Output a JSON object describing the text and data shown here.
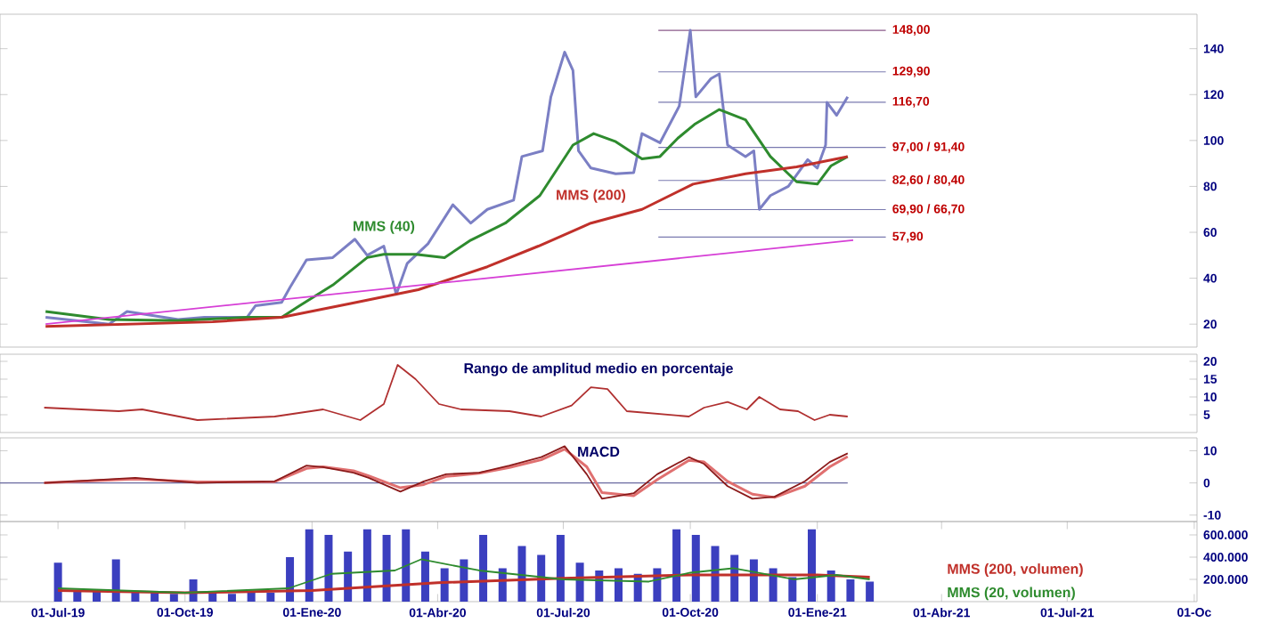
{
  "chart_data": [
    {
      "type": "line",
      "xlim": [
        "2019-05-20",
        "2021-10-03"
      ],
      "ylim": [
        10,
        155
      ],
      "yticks": [
        20,
        40,
        60,
        80,
        100,
        120,
        140
      ],
      "tick_labels": "y",
      "series": [
        {
          "color": "#7b7fc4",
          "x": [
            "2019-06-22",
            "2019-08-07",
            "2019-08-20",
            "2019-09-26",
            "2019-10-15",
            "2019-11-15",
            "2019-11-21",
            "2019-12-10",
            "2019-12-16",
            "2019-12-28",
            "2020-01-16",
            "2020-02-01",
            "2020-02-10",
            "2020-02-22",
            "2020-03-02",
            "2020-03-10",
            "2020-03-25",
            "2020-04-12",
            "2020-04-25",
            "2020-05-07",
            "2020-05-26",
            "2020-06-01",
            "2020-06-16",
            "2020-06-22",
            "2020-07-02",
            "2020-07-08",
            "2020-07-12",
            "2020-07-21",
            "2020-08-08",
            "2020-08-21",
            "2020-08-27",
            "2020-09-09",
            "2020-09-23",
            "2020-10-01",
            "2020-10-05",
            "2020-10-16",
            "2020-10-22",
            "2020-10-28",
            "2020-11-10",
            "2020-11-16",
            "2020-11-20",
            "2020-11-28",
            "2020-12-11",
            "2020-12-25",
            "2021-01-01",
            "2021-01-07",
            "2021-01-08",
            "2021-01-15",
            "2021-01-23"
          ],
          "values": [
            23,
            20,
            25.5,
            22,
            23,
            23,
            28,
            29.5,
            36,
            48,
            49,
            57,
            50,
            54,
            33,
            46.5,
            55,
            72,
            64,
            70,
            74,
            93,
            95.5,
            119,
            138.5,
            130.5,
            95.5,
            88,
            85.5,
            86,
            103,
            99,
            115,
            148,
            119,
            127,
            129,
            98,
            93,
            95.5,
            70,
            76,
            80,
            91.7,
            88,
            98,
            116.6,
            111,
            119
          ]
        },
        {
          "name": "MMS (40)",
          "color": "#2e8b2e",
          "x": [
            "2019-06-22",
            "2019-08-07",
            "2019-09-26",
            "2019-11-15",
            "2019-12-10",
            "2019-12-23",
            "2020-01-16",
            "2020-02-10",
            "2020-02-22",
            "2020-03-16",
            "2020-04-06",
            "2020-04-25",
            "2020-05-20",
            "2020-06-14",
            "2020-07-08",
            "2020-07-23",
            "2020-08-08",
            "2020-08-27",
            "2020-09-09",
            "2020-09-22",
            "2020-10-04",
            "2020-10-22",
            "2020-11-10",
            "2020-11-28",
            "2020-12-17",
            "2021-01-01",
            "2021-01-11",
            "2021-01-23"
          ],
          "values": [
            25.5,
            22,
            21.5,
            23,
            23,
            28,
            37,
            49,
            50.4,
            50.4,
            49,
            56.6,
            64,
            76,
            98,
            103,
            99.5,
            92,
            93,
            101,
            107,
            113.5,
            109,
            93,
            82,
            81,
            89,
            93
          ]
        },
        {
          "name": "MMS (200)",
          "color": "#c0302a",
          "x": [
            "2019-06-22",
            "2019-10-21",
            "2019-12-10",
            "2020-01-29",
            "2020-03-18",
            "2020-05-07",
            "2020-06-13",
            "2020-07-21",
            "2020-08-27",
            "2020-10-03",
            "2020-11-10",
            "2020-12-17",
            "2021-01-23"
          ],
          "values": [
            19,
            21,
            23,
            29,
            35,
            45,
            54,
            64,
            70,
            81,
            85.5,
            88.5,
            93
          ]
        },
        {
          "color": "#d63fd6",
          "x": [
            "2019-06-22",
            "2021-01-27"
          ],
          "values": [
            20,
            56.6
          ]
        }
      ],
      "ref_lines": [
        {
          "axis": "y",
          "value": 148,
          "label": "148,00",
          "color": "#8a5a8a"
        },
        {
          "axis": "y",
          "value": 129.9,
          "label": "129,90",
          "color": "#7a7ab0"
        },
        {
          "axis": "y",
          "value": 116.7,
          "label": "116,70",
          "color": "#7a7ab0"
        },
        {
          "axis": "y",
          "value": 97,
          "label": "97,00 / 91,40",
          "color": "#7a7ab0"
        },
        {
          "axis": "y",
          "value": 82.6,
          "label": "82,60 / 80,40",
          "color": "#7a7ab0"
        },
        {
          "axis": "y",
          "value": 69.9,
          "label": "69,90 / 66,70",
          "color": "#7a7ab0"
        },
        {
          "axis": "y",
          "value": 57.9,
          "label": "57,90",
          "color": "#7a7ab0"
        }
      ]
    },
    {
      "type": "line",
      "xlim": [
        "2019-05-20",
        "2021-10-03"
      ],
      "ylim": [
        0,
        22
      ],
      "yticks": [
        5,
        10,
        15,
        20
      ],
      "tick_labels": "y",
      "series": [
        {
          "color": "#b03030",
          "x": [
            "2019-06-21",
            "2019-08-14",
            "2019-08-31",
            "2019-10-10",
            "2019-12-05",
            "2020-01-09",
            "2020-02-05",
            "2020-02-22",
            "2020-03-03",
            "2020-03-16",
            "2020-04-02",
            "2020-04-18",
            "2020-05-23",
            "2020-06-15",
            "2020-07-07",
            "2020-07-21",
            "2020-08-02",
            "2020-08-16",
            "2020-09-30",
            "2020-10-11",
            "2020-10-28",
            "2020-11-11",
            "2020-11-20",
            "2020-12-05",
            "2020-12-18",
            "2020-12-30",
            "2021-01-10",
            "2021-01-23"
          ],
          "values": [
            7,
            6,
            6.5,
            3.5,
            4.5,
            6.5,
            3.5,
            8,
            19,
            15,
            8,
            6.5,
            6,
            4.5,
            7.6,
            12.7,
            12.2,
            6,
            4.5,
            7,
            8.6,
            6.5,
            10,
            6.5,
            6,
            3.5,
            5,
            4.5
          ]
        }
      ],
      "annotations": [
        "Rango de amplitud medio en porcentaje"
      ]
    },
    {
      "type": "line",
      "xlim": [
        "2019-05-20",
        "2021-10-03"
      ],
      "ylim": [
        -12,
        14
      ],
      "yticks": [
        -10,
        0,
        10
      ],
      "tick_labels": "y",
      "ref_lines": [
        {
          "axis": "y",
          "value": 0,
          "color": "#6a6aa0"
        }
      ],
      "series": [
        {
          "color": "#e07070",
          "x": [
            "2019-06-21",
            "2019-08-26",
            "2019-10-10",
            "2019-12-05",
            "2019-12-28",
            "2020-01-09",
            "2020-01-31",
            "2020-02-11",
            "2020-03-05",
            "2020-03-22",
            "2020-04-07",
            "2020-05-01",
            "2020-05-23",
            "2020-06-15",
            "2020-07-02",
            "2020-07-18",
            "2020-07-29",
            "2020-08-21",
            "2020-09-07",
            "2020-09-30",
            "2020-10-11",
            "2020-10-28",
            "2020-11-15",
            "2020-12-01",
            "2020-12-23",
            "2021-01-10",
            "2021-01-23"
          ],
          "values": [
            0,
            1.2,
            0.3,
            0.4,
            4.5,
            5,
            3.8,
            2.2,
            -1.5,
            -0.5,
            2,
            3,
            4.8,
            7.2,
            10.5,
            5,
            -3,
            -4,
            1,
            7,
            6.5,
            0.5,
            -3.5,
            -4.5,
            -1,
            5,
            8.2
          ]
        },
        {
          "color": "#8b1a1a",
          "x": [
            "2019-06-21",
            "2019-08-26",
            "2019-10-10",
            "2019-12-05",
            "2019-12-28",
            "2020-01-09",
            "2020-01-31",
            "2020-02-11",
            "2020-03-05",
            "2020-03-22",
            "2020-04-07",
            "2020-05-01",
            "2020-05-23",
            "2020-06-15",
            "2020-07-02",
            "2020-07-18",
            "2020-07-29",
            "2020-08-21",
            "2020-09-07",
            "2020-09-30",
            "2020-10-11",
            "2020-10-28",
            "2020-11-15",
            "2020-12-01",
            "2020-12-23",
            "2021-01-10",
            "2021-01-23"
          ],
          "values": [
            0,
            1.6,
            0,
            0.5,
            5.4,
            4.9,
            3.2,
            1.6,
            -2.7,
            0.5,
            2.7,
            3.2,
            5.4,
            8,
            11.4,
            2.7,
            -4.9,
            -3.2,
            2.7,
            8,
            5.9,
            -1,
            -4.9,
            -4.3,
            0.5,
            6.5,
            9.2
          ]
        }
      ],
      "annotations": [
        "MACD"
      ]
    },
    {
      "type": "bar",
      "xlim": [
        "2019-05-20",
        "2021-10-03"
      ],
      "ylim": [
        0,
        720000
      ],
      "yticks": [
        {
          "value": 200000,
          "label": "200.000"
        },
        {
          "value": 400000,
          "label": "400.000"
        },
        {
          "value": 600000,
          "label": "600.000"
        }
      ],
      "xticks": [
        {
          "value": "2019-07-01",
          "label": "01-Jul-19"
        },
        {
          "value": "2019-10-01",
          "label": "01-Oct-19"
        },
        {
          "value": "2020-01-01",
          "label": "01-Ene-20"
        },
        {
          "value": "2020-04-01",
          "label": "01-Abr-20"
        },
        {
          "value": "2020-07-01",
          "label": "01-Jul-20"
        },
        {
          "value": "2020-10-01",
          "label": "01-Oct-20"
        },
        {
          "value": "2021-01-01",
          "label": "01-Ene-21"
        },
        {
          "value": "2021-04-01",
          "label": "01-Abr-21"
        },
        {
          "value": "2021-07-01",
          "label": "01-Jul-21"
        },
        {
          "value": "2021-10-01",
          "label": "01-Oc"
        }
      ],
      "series": [
        {
          "color": "#3b3fbf",
          "x": [
            "2019-07-01",
            "2019-07-15",
            "2019-07-29",
            "2019-08-12",
            "2019-08-26",
            "2019-09-09",
            "2019-09-23",
            "2019-10-07",
            "2019-10-21",
            "2019-11-04",
            "2019-11-18",
            "2019-12-02",
            "2019-12-16",
            "2019-12-30",
            "2020-01-13",
            "2020-01-27",
            "2020-02-10",
            "2020-02-24",
            "2020-03-09",
            "2020-03-23",
            "2020-04-06",
            "2020-04-20",
            "2020-05-04",
            "2020-05-18",
            "2020-06-01",
            "2020-06-15",
            "2020-06-29",
            "2020-07-13",
            "2020-07-27",
            "2020-08-10",
            "2020-08-24",
            "2020-09-07",
            "2020-09-21",
            "2020-10-05",
            "2020-10-19",
            "2020-11-02",
            "2020-11-16",
            "2020-11-30",
            "2020-12-14",
            "2020-12-28",
            "2021-01-11",
            "2021-01-25",
            "2021-02-08"
          ],
          "values": [
            350000,
            100000,
            90000,
            380000,
            80000,
            90000,
            70000,
            200000,
            80000,
            70000,
            90000,
            80000,
            400000,
            650000,
            600000,
            450000,
            650000,
            600000,
            650000,
            450000,
            300000,
            380000,
            600000,
            300000,
            500000,
            420000,
            600000,
            350000,
            280000,
            300000,
            250000,
            300000,
            650000,
            600000,
            500000,
            420000,
            380000,
            300000,
            220000,
            650000,
            280000,
            200000,
            180000
          ]
        },
        {
          "type": "line",
          "name": "MMS (200, volumen)",
          "color": "#c0302a",
          "x": [
            "2019-07-01",
            "2019-10-01",
            "2020-01-01",
            "2020-04-01",
            "2020-07-01",
            "2020-10-01",
            "2021-01-01",
            "2021-02-08"
          ],
          "values": [
            100000,
            80000,
            100000,
            170000,
            210000,
            240000,
            240000,
            220000
          ]
        },
        {
          "type": "line",
          "name": "MMS (20, volumen)",
          "color": "#2e8b2e",
          "x": [
            "2019-07-01",
            "2019-10-01",
            "2019-12-15",
            "2020-01-15",
            "2020-03-01",
            "2020-03-20",
            "2020-05-01",
            "2020-07-01",
            "2020-09-01",
            "2020-10-01",
            "2020-11-01",
            "2020-12-15",
            "2021-01-15",
            "2021-02-08"
          ],
          "values": [
            120000,
            80000,
            120000,
            250000,
            280000,
            380000,
            280000,
            200000,
            180000,
            260000,
            300000,
            200000,
            240000,
            200000
          ]
        }
      ]
    }
  ]
}
